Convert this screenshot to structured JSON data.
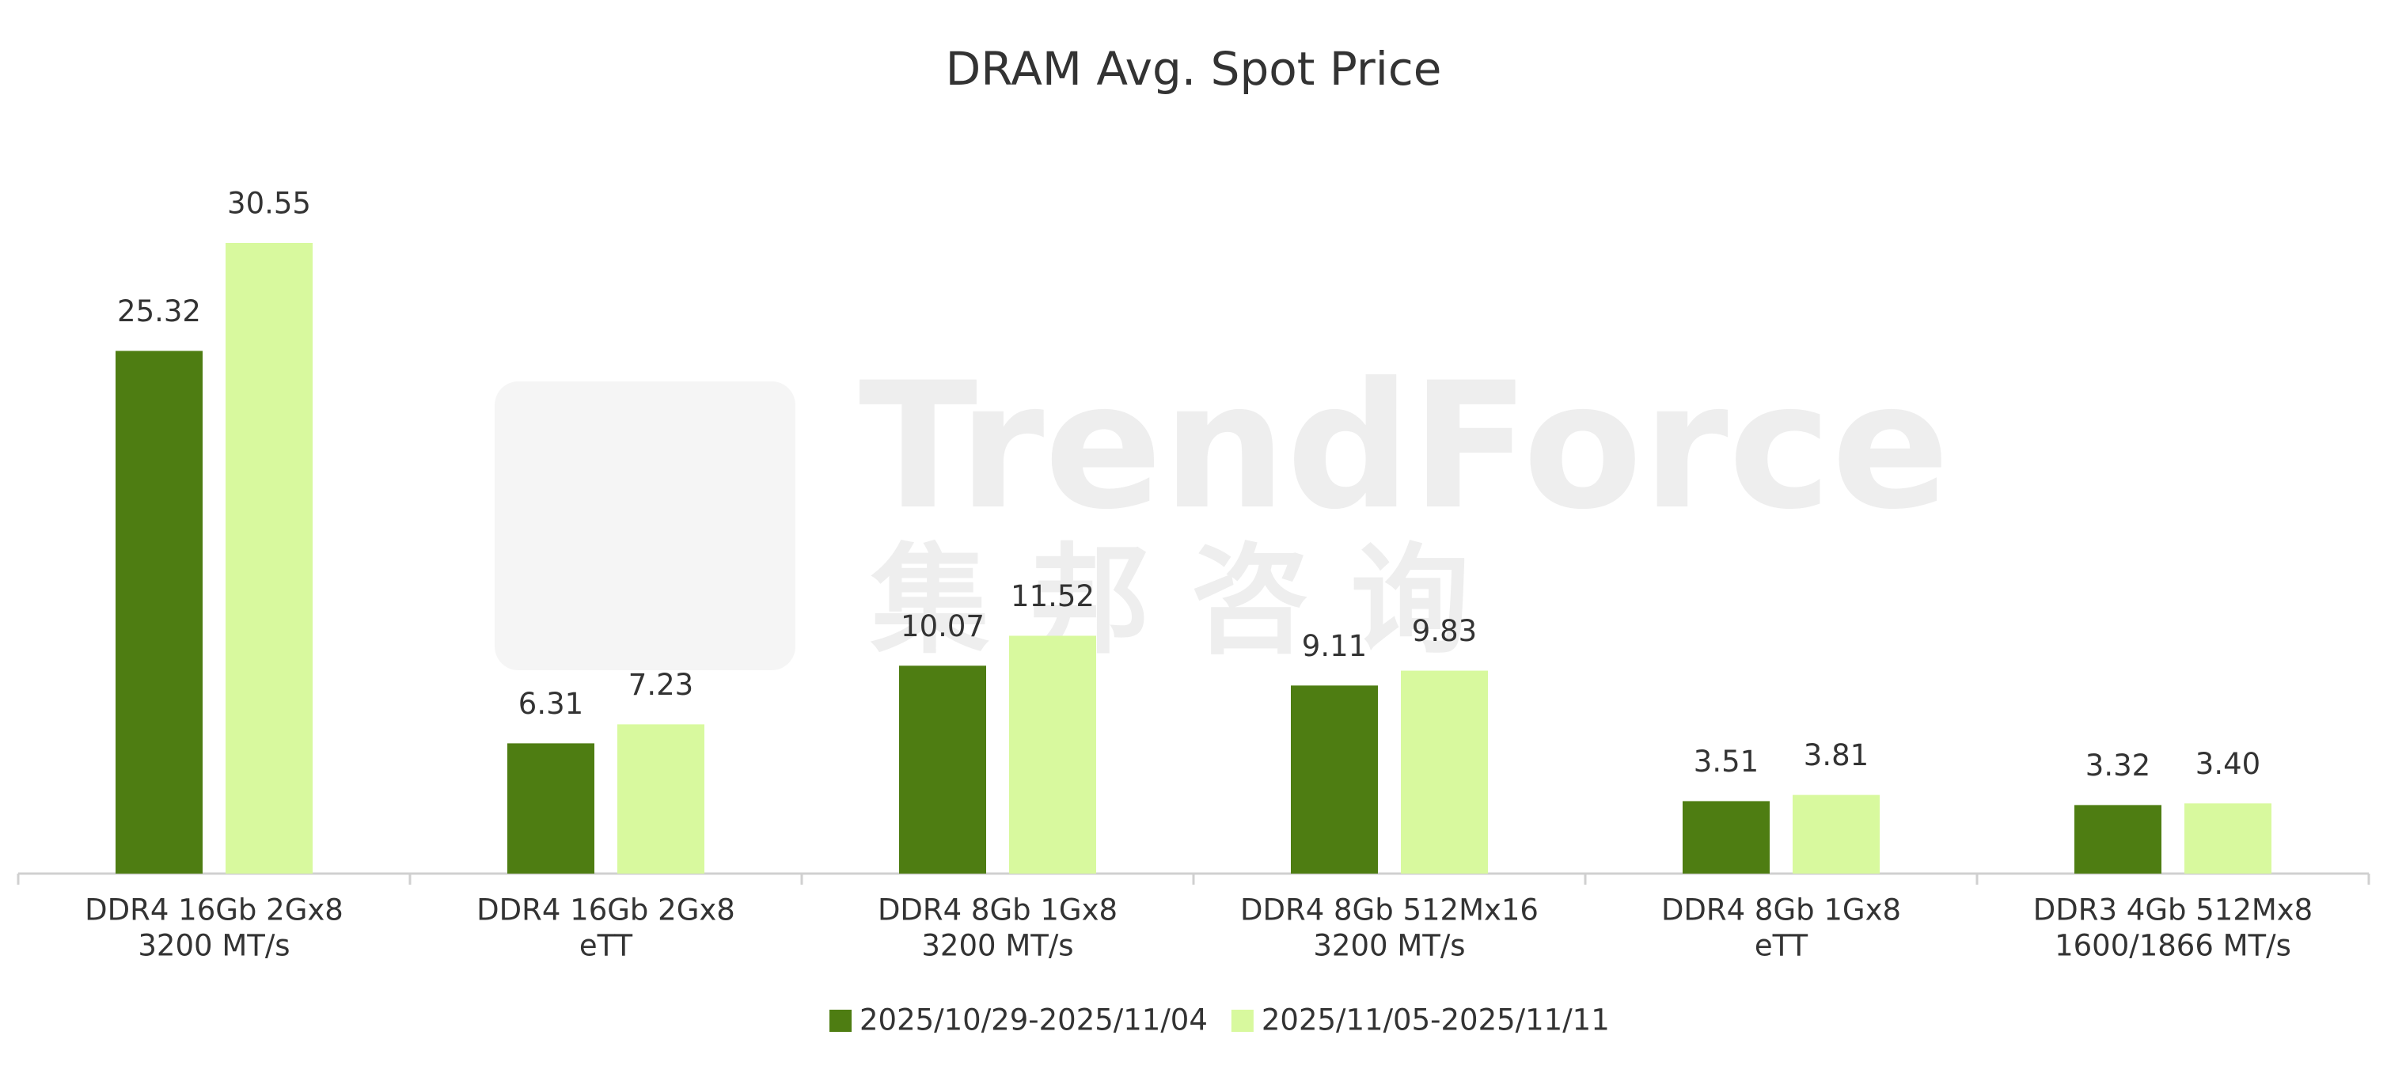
{
  "chart_data": {
    "type": "bar",
    "title": "DRAM Avg. Spot Price",
    "watermark": "TrendForce",
    "watermark_cn": "集 邦 咨 询",
    "categories": [
      [
        "DDR4 16Gb 2Gx8",
        "3200 MT/s"
      ],
      [
        "DDR4 16Gb 2Gx8",
        "eTT"
      ],
      [
        "DDR4 8Gb 1Gx8",
        "3200 MT/s"
      ],
      [
        "DDR4 8Gb 512Mx16",
        "3200 MT/s"
      ],
      [
        "DDR4 8Gb 1Gx8",
        "eTT"
      ],
      [
        "DDR3 4Gb 512Mx8",
        "1600/1866 MT/s"
      ]
    ],
    "series": [
      {
        "name": "2025/10/29-2025/11/04",
        "color": "#4e7d12",
        "values": [
          25.32,
          6.31,
          10.07,
          9.11,
          3.51,
          3.32
        ],
        "value_labels": [
          "25.32",
          "6.31",
          "10.07",
          "9.11",
          "3.51",
          "3.32"
        ]
      },
      {
        "name": "2025/11/05-2025/11/11",
        "color": "#d8f99e",
        "values": [
          30.55,
          7.23,
          11.52,
          9.83,
          3.81,
          3.4
        ],
        "value_labels": [
          "30.55",
          "7.23",
          "11.52",
          "9.83",
          "3.81",
          "3.40"
        ]
      }
    ],
    "legend": "bottom"
  }
}
